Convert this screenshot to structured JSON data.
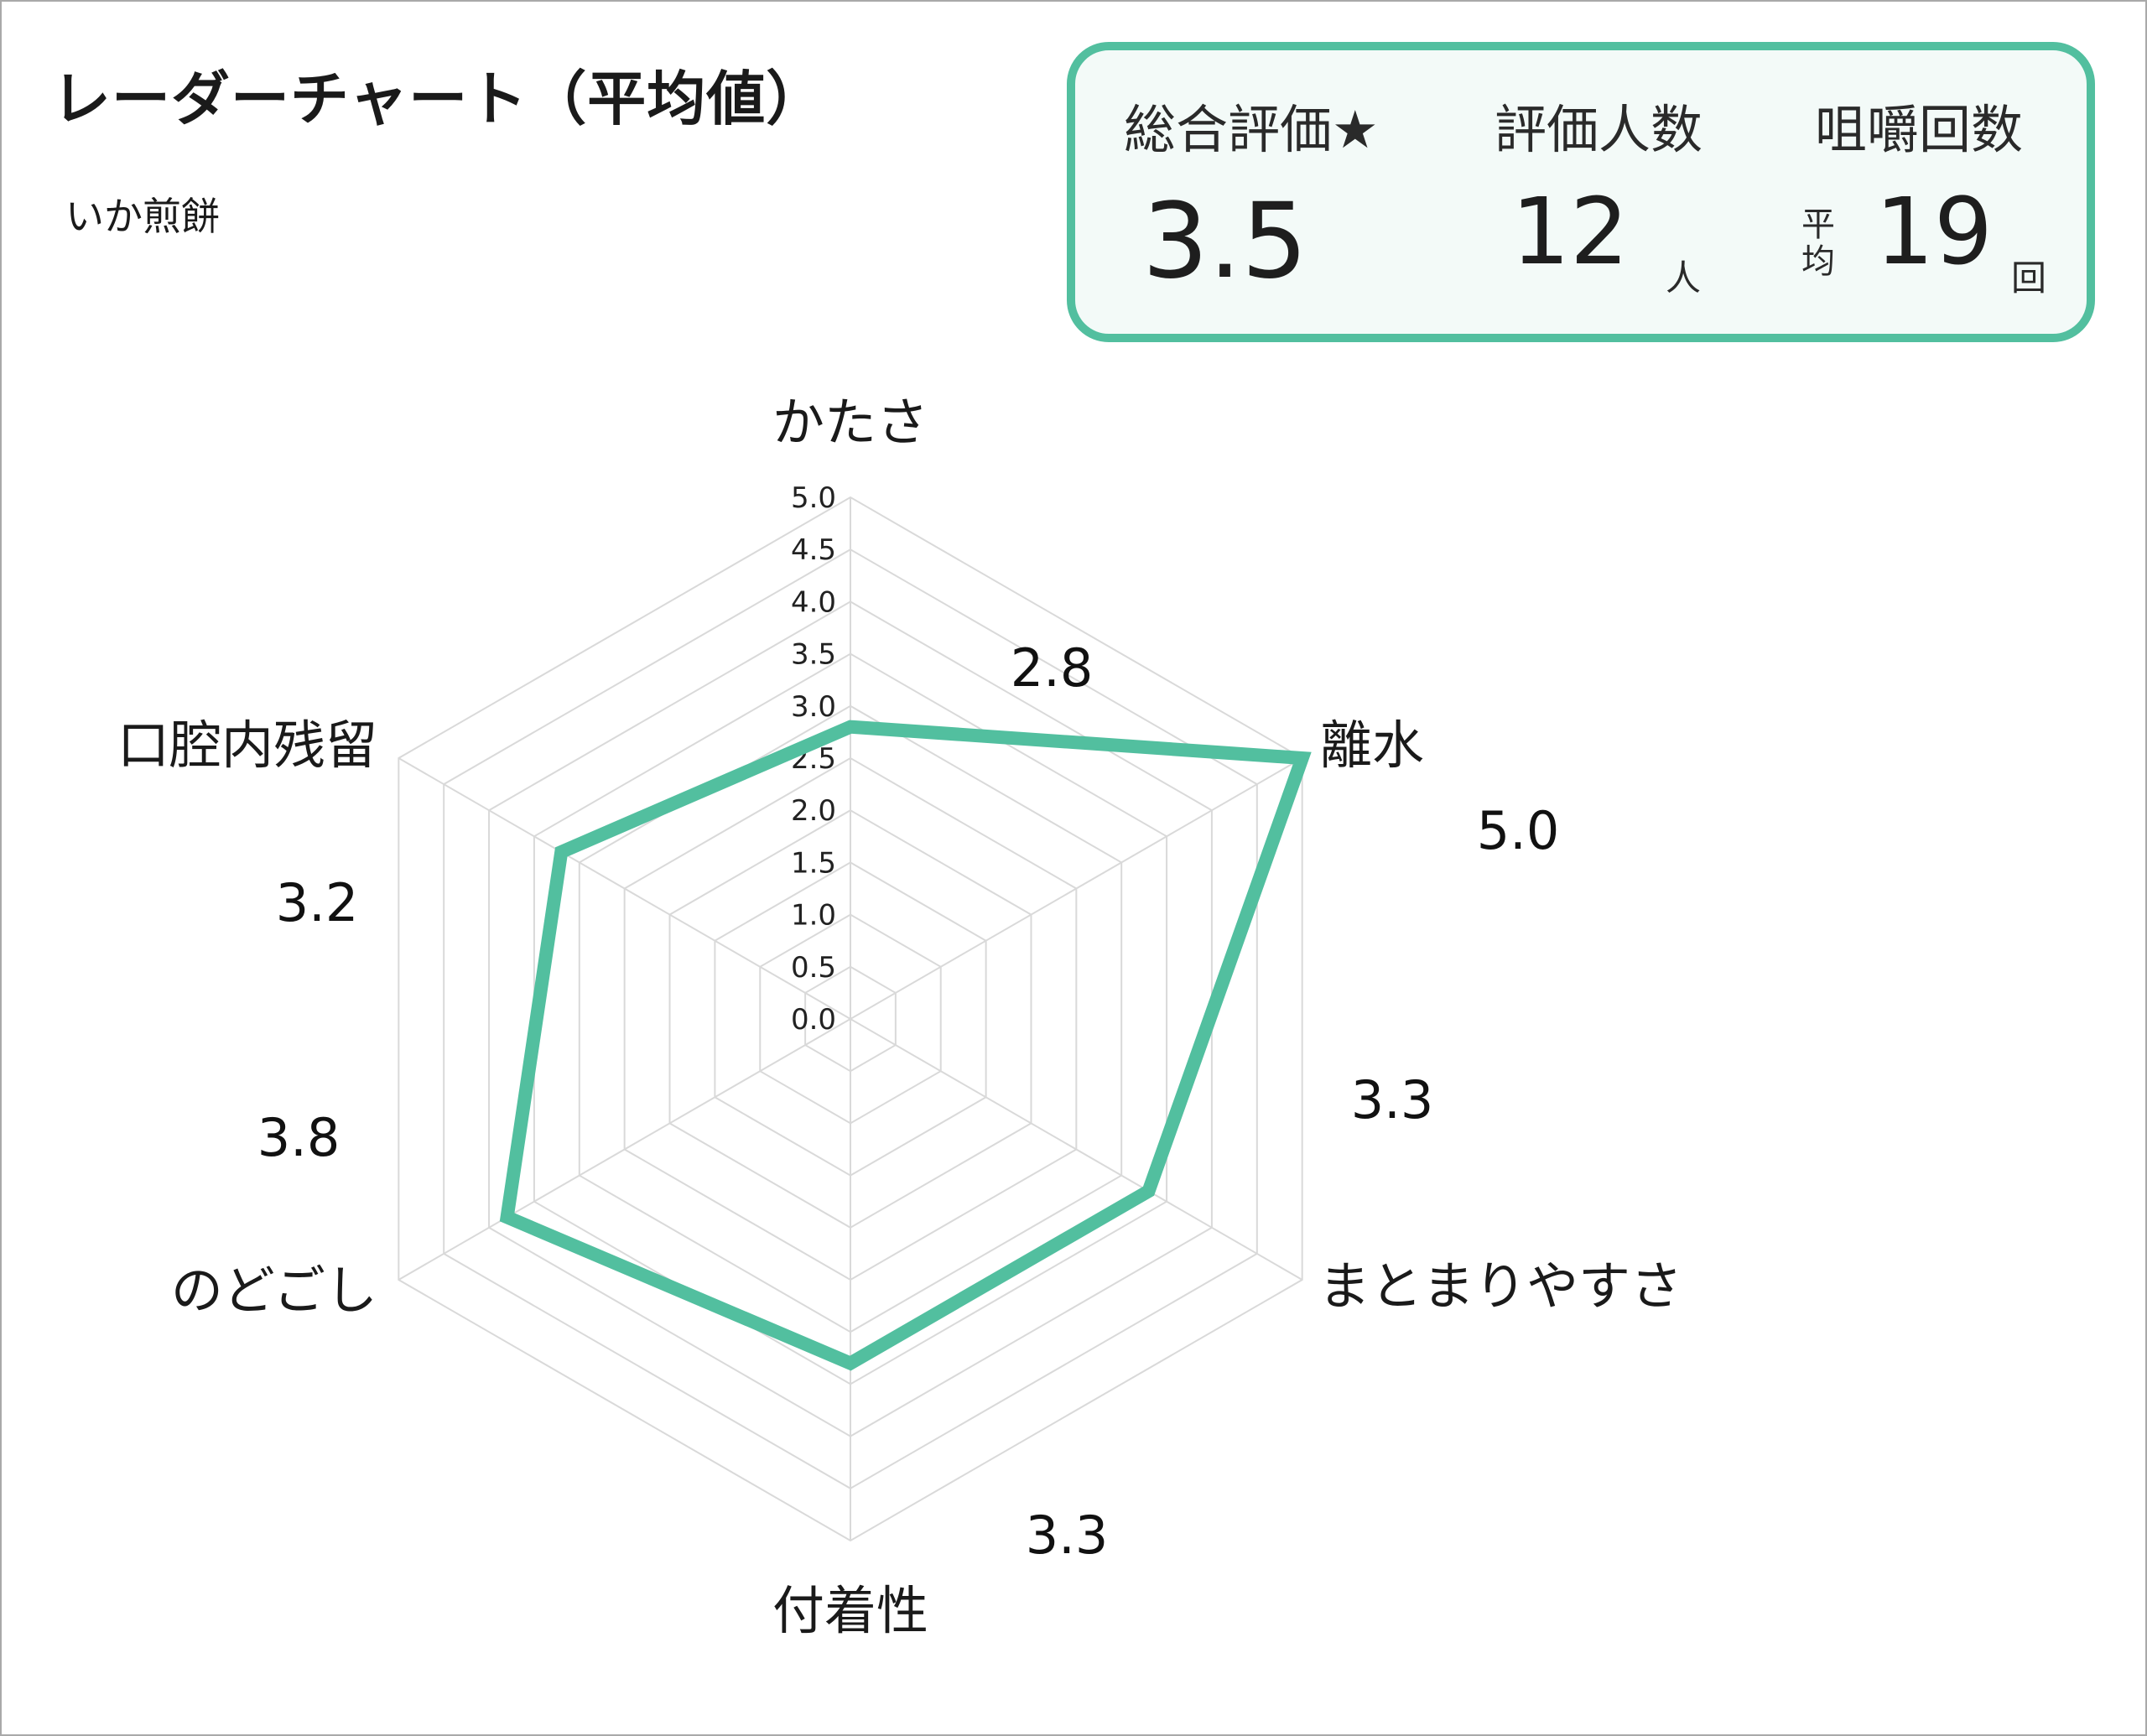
{
  "title": "レーダーチャート（平均値）",
  "subtitle": "いか煎餅",
  "summary": {
    "overall": {
      "label": "総合評価★",
      "value": "3.5"
    },
    "raters": {
      "label": "評価人数",
      "value": "12",
      "unit": "人"
    },
    "chews": {
      "label": "咀嚼回数",
      "prefix_top": "平",
      "prefix_bottom": "均",
      "value": "19",
      "unit": "回"
    }
  },
  "chart_data": {
    "type": "radar",
    "axes": [
      "かたさ",
      "離水",
      "まとまりやすさ",
      "付着性",
      "のどごし",
      "口腔内残留"
    ],
    "values": [
      2.8,
      5.0,
      3.3,
      3.3,
      3.8,
      3.2
    ],
    "value_labels": [
      "2.8",
      "5.0",
      "3.3",
      "3.3",
      "3.8",
      "3.2"
    ],
    "range": [
      0,
      5.0
    ],
    "ticks": [
      "0.0",
      "0.5",
      "1.0",
      "1.5",
      "2.0",
      "2.5",
      "3.0",
      "3.5",
      "4.0",
      "4.5",
      "5.0"
    ],
    "grid": true,
    "colors": {
      "series": "#52bf9f",
      "grid": "#d9d9d9"
    }
  }
}
